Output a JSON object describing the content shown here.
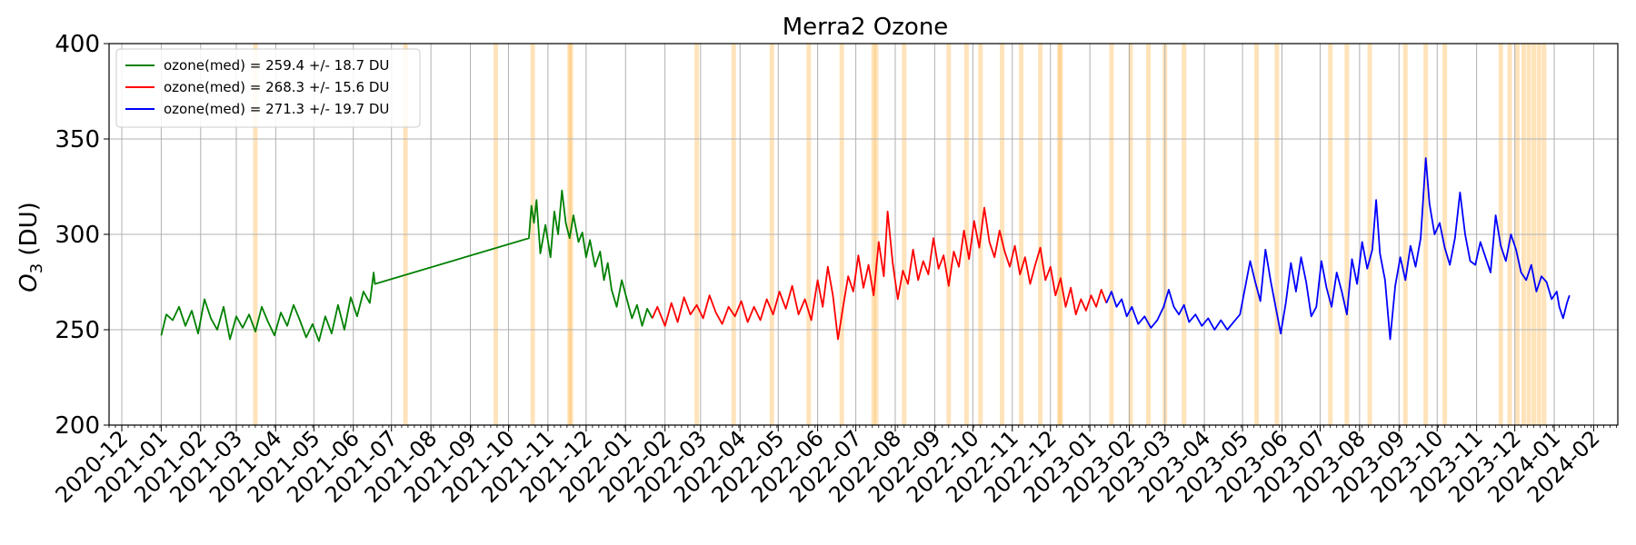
{
  "chart_data": {
    "type": "line",
    "title": "Merra2 Ozone",
    "ylabel_main": "O",
    "ylabel_sub": "3",
    "ylabel_rest": " (DU)",
    "xlabel": "",
    "xlim": [
      "2020-11-21",
      "2024-02-20"
    ],
    "ylim": [
      200,
      400
    ],
    "yticks": [
      200,
      250,
      300,
      350,
      400
    ],
    "xticks": [
      "2020-12",
      "2021-01",
      "2021-02",
      "2021-03",
      "2021-04",
      "2021-05",
      "2021-06",
      "2021-07",
      "2021-08",
      "2021-09",
      "2021-10",
      "2021-11",
      "2021-12",
      "2022-01",
      "2022-02",
      "2022-03",
      "2022-04",
      "2022-05",
      "2022-06",
      "2022-07",
      "2022-08",
      "2022-09",
      "2022-10",
      "2022-11",
      "2022-12",
      "2023-01",
      "2023-02",
      "2023-03",
      "2023-04",
      "2023-05",
      "2023-06",
      "2023-07",
      "2023-08",
      "2023-09",
      "2023-10",
      "2023-11",
      "2023-12",
      "2024-01",
      "2024-02"
    ],
    "grid": true,
    "legend_position": "top-left",
    "series": [
      {
        "name": "ozone(med) = 259.4 +/- 18.7 DU",
        "color": "#008000",
        "points": [
          [
            "2021-01-01",
            247
          ],
          [
            "2021-01-05",
            258
          ],
          [
            "2021-01-10",
            255
          ],
          [
            "2021-01-15",
            262
          ],
          [
            "2021-01-20",
            252
          ],
          [
            "2021-01-25",
            260
          ],
          [
            "2021-01-30",
            248
          ],
          [
            "2021-02-04",
            266
          ],
          [
            "2021-02-09",
            256
          ],
          [
            "2021-02-14",
            250
          ],
          [
            "2021-02-19",
            262
          ],
          [
            "2021-02-24",
            245
          ],
          [
            "2021-03-01",
            257
          ],
          [
            "2021-03-06",
            251
          ],
          [
            "2021-03-11",
            258
          ],
          [
            "2021-03-16",
            249
          ],
          [
            "2021-03-21",
            262
          ],
          [
            "2021-03-26",
            254
          ],
          [
            "2021-03-31",
            247
          ],
          [
            "2021-04-05",
            259
          ],
          [
            "2021-04-10",
            252
          ],
          [
            "2021-04-15",
            263
          ],
          [
            "2021-04-20",
            255
          ],
          [
            "2021-04-25",
            246
          ],
          [
            "2021-04-30",
            253
          ],
          [
            "2021-05-05",
            244
          ],
          [
            "2021-05-10",
            257
          ],
          [
            "2021-05-15",
            248
          ],
          [
            "2021-05-20",
            263
          ],
          [
            "2021-05-25",
            250
          ],
          [
            "2021-05-30",
            267
          ],
          [
            "2021-06-04",
            257
          ],
          [
            "2021-06-09",
            270
          ],
          [
            "2021-06-14",
            264
          ],
          [
            "2021-06-17",
            280
          ],
          [
            "2021-06-18",
            274
          ],
          [
            "2021-10-17",
            298
          ],
          [
            "2021-10-19",
            315
          ],
          [
            "2021-10-21",
            306
          ],
          [
            "2021-10-23",
            318
          ],
          [
            "2021-10-26",
            290
          ],
          [
            "2021-10-30",
            305
          ],
          [
            "2021-11-03",
            288
          ],
          [
            "2021-11-06",
            312
          ],
          [
            "2021-11-09",
            300
          ],
          [
            "2021-11-12",
            323
          ],
          [
            "2021-11-15",
            306
          ],
          [
            "2021-11-18",
            298
          ],
          [
            "2021-11-21",
            310
          ],
          [
            "2021-11-25",
            296
          ],
          [
            "2021-11-28",
            301
          ],
          [
            "2021-12-01",
            288
          ],
          [
            "2021-12-04",
            297
          ],
          [
            "2021-12-08",
            283
          ],
          [
            "2021-12-12",
            291
          ],
          [
            "2021-12-15",
            276
          ],
          [
            "2021-12-18",
            285
          ],
          [
            "2021-12-21",
            271
          ],
          [
            "2021-12-25",
            262
          ],
          [
            "2021-12-29",
            276
          ],
          [
            "2022-01-02",
            266
          ],
          [
            "2022-01-06",
            256
          ],
          [
            "2022-01-10",
            263
          ],
          [
            "2022-01-14",
            252
          ],
          [
            "2022-01-18",
            261
          ],
          [
            "2022-01-22",
            256
          ]
        ]
      },
      {
        "name": "ozone(med) = 268.3 +/- 15.6 DU",
        "color": "#ff0000",
        "points": [
          [
            "2022-01-22",
            256
          ],
          [
            "2022-01-26",
            262
          ],
          [
            "2022-02-01",
            252
          ],
          [
            "2022-02-06",
            264
          ],
          [
            "2022-02-11",
            254
          ],
          [
            "2022-02-16",
            267
          ],
          [
            "2022-02-21",
            258
          ],
          [
            "2022-02-26",
            263
          ],
          [
            "2022-03-03",
            256
          ],
          [
            "2022-03-08",
            268
          ],
          [
            "2022-03-13",
            259
          ],
          [
            "2022-03-18",
            253
          ],
          [
            "2022-03-23",
            262
          ],
          [
            "2022-03-28",
            257
          ],
          [
            "2022-04-02",
            265
          ],
          [
            "2022-04-07",
            254
          ],
          [
            "2022-04-12",
            262
          ],
          [
            "2022-04-17",
            255
          ],
          [
            "2022-04-22",
            266
          ],
          [
            "2022-04-27",
            258
          ],
          [
            "2022-05-02",
            270
          ],
          [
            "2022-05-07",
            261
          ],
          [
            "2022-05-12",
            273
          ],
          [
            "2022-05-17",
            258
          ],
          [
            "2022-05-22",
            266
          ],
          [
            "2022-05-27",
            255
          ],
          [
            "2022-06-01",
            276
          ],
          [
            "2022-06-05",
            262
          ],
          [
            "2022-06-09",
            283
          ],
          [
            "2022-06-13",
            268
          ],
          [
            "2022-06-17",
            245
          ],
          [
            "2022-06-21",
            262
          ],
          [
            "2022-06-25",
            278
          ],
          [
            "2022-06-29",
            270
          ],
          [
            "2022-07-03",
            289
          ],
          [
            "2022-07-07",
            272
          ],
          [
            "2022-07-11",
            284
          ],
          [
            "2022-07-15",
            268
          ],
          [
            "2022-07-19",
            296
          ],
          [
            "2022-07-23",
            278
          ],
          [
            "2022-07-26",
            312
          ],
          [
            "2022-07-30",
            285
          ],
          [
            "2022-08-03",
            266
          ],
          [
            "2022-08-07",
            281
          ],
          [
            "2022-08-11",
            274
          ],
          [
            "2022-08-15",
            292
          ],
          [
            "2022-08-19",
            276
          ],
          [
            "2022-08-23",
            286
          ],
          [
            "2022-08-27",
            279
          ],
          [
            "2022-08-31",
            298
          ],
          [
            "2022-09-04",
            282
          ],
          [
            "2022-09-08",
            289
          ],
          [
            "2022-09-12",
            273
          ],
          [
            "2022-09-16",
            291
          ],
          [
            "2022-09-20",
            283
          ],
          [
            "2022-09-24",
            302
          ],
          [
            "2022-09-28",
            287
          ],
          [
            "2022-10-02",
            307
          ],
          [
            "2022-10-06",
            293
          ],
          [
            "2022-10-10",
            314
          ],
          [
            "2022-10-14",
            296
          ],
          [
            "2022-10-18",
            288
          ],
          [
            "2022-10-22",
            302
          ],
          [
            "2022-10-26",
            291
          ],
          [
            "2022-10-30",
            283
          ],
          [
            "2022-11-03",
            294
          ],
          [
            "2022-11-07",
            279
          ],
          [
            "2022-11-11",
            288
          ],
          [
            "2022-11-15",
            274
          ],
          [
            "2022-11-19",
            284
          ],
          [
            "2022-11-23",
            293
          ],
          [
            "2022-11-27",
            276
          ],
          [
            "2022-12-01",
            283
          ],
          [
            "2022-12-05",
            268
          ],
          [
            "2022-12-09",
            277
          ],
          [
            "2022-12-13",
            262
          ],
          [
            "2022-12-17",
            272
          ],
          [
            "2022-12-21",
            258
          ],
          [
            "2022-12-25",
            266
          ],
          [
            "2022-12-29",
            260
          ],
          [
            "2023-01-02",
            268
          ],
          [
            "2023-01-06",
            262
          ],
          [
            "2023-01-10",
            271
          ],
          [
            "2023-01-14",
            264
          ]
        ]
      },
      {
        "name": "ozone(med) = 271.3 +/- 19.7 DU",
        "color": "#0000ff",
        "points": [
          [
            "2023-01-14",
            264
          ],
          [
            "2023-01-18",
            270
          ],
          [
            "2023-01-22",
            262
          ],
          [
            "2023-01-26",
            266
          ],
          [
            "2023-01-30",
            257
          ],
          [
            "2023-02-03",
            262
          ],
          [
            "2023-02-08",
            253
          ],
          [
            "2023-02-13",
            257
          ],
          [
            "2023-02-18",
            251
          ],
          [
            "2023-02-23",
            255
          ],
          [
            "2023-02-28",
            262
          ],
          [
            "2023-03-04",
            271
          ],
          [
            "2023-03-08",
            262
          ],
          [
            "2023-03-12",
            258
          ],
          [
            "2023-03-16",
            263
          ],
          [
            "2023-03-20",
            254
          ],
          [
            "2023-03-25",
            258
          ],
          [
            "2023-03-30",
            252
          ],
          [
            "2023-04-04",
            256
          ],
          [
            "2023-04-09",
            250
          ],
          [
            "2023-04-14",
            255
          ],
          [
            "2023-04-19",
            250
          ],
          [
            "2023-04-24",
            254
          ],
          [
            "2023-04-29",
            258
          ],
          [
            "2023-05-03",
            272
          ],
          [
            "2023-05-07",
            286
          ],
          [
            "2023-05-11",
            275
          ],
          [
            "2023-05-15",
            265
          ],
          [
            "2023-05-19",
            292
          ],
          [
            "2023-05-23",
            276
          ],
          [
            "2023-05-27",
            262
          ],
          [
            "2023-05-31",
            248
          ],
          [
            "2023-06-04",
            264
          ],
          [
            "2023-06-08",
            285
          ],
          [
            "2023-06-12",
            270
          ],
          [
            "2023-06-16",
            288
          ],
          [
            "2023-06-20",
            275
          ],
          [
            "2023-06-24",
            257
          ],
          [
            "2023-06-28",
            262
          ],
          [
            "2023-07-02",
            286
          ],
          [
            "2023-07-06",
            272
          ],
          [
            "2023-07-10",
            262
          ],
          [
            "2023-07-14",
            280
          ],
          [
            "2023-07-18",
            270
          ],
          [
            "2023-07-22",
            258
          ],
          [
            "2023-07-26",
            287
          ],
          [
            "2023-07-30",
            274
          ],
          [
            "2023-08-03",
            296
          ],
          [
            "2023-08-07",
            282
          ],
          [
            "2023-08-11",
            292
          ],
          [
            "2023-08-14",
            318
          ],
          [
            "2023-08-17",
            290
          ],
          [
            "2023-08-21",
            276
          ],
          [
            "2023-08-25",
            245
          ],
          [
            "2023-08-29",
            273
          ],
          [
            "2023-09-02",
            288
          ],
          [
            "2023-09-06",
            276
          ],
          [
            "2023-09-10",
            294
          ],
          [
            "2023-09-14",
            283
          ],
          [
            "2023-09-18",
            298
          ],
          [
            "2023-09-22",
            340
          ],
          [
            "2023-09-25",
            316
          ],
          [
            "2023-09-29",
            300
          ],
          [
            "2023-10-03",
            306
          ],
          [
            "2023-10-07",
            293
          ],
          [
            "2023-10-11",
            284
          ],
          [
            "2023-10-15",
            298
          ],
          [
            "2023-10-19",
            322
          ],
          [
            "2023-10-23",
            300
          ],
          [
            "2023-10-27",
            286
          ],
          [
            "2023-10-31",
            284
          ],
          [
            "2023-11-04",
            296
          ],
          [
            "2023-11-08",
            288
          ],
          [
            "2023-11-12",
            280
          ],
          [
            "2023-11-16",
            310
          ],
          [
            "2023-11-20",
            294
          ],
          [
            "2023-11-24",
            286
          ],
          [
            "2023-11-28",
            300
          ],
          [
            "2023-12-02",
            292
          ],
          [
            "2023-12-06",
            280
          ],
          [
            "2023-12-10",
            276
          ],
          [
            "2023-12-14",
            284
          ],
          [
            "2023-12-18",
            270
          ],
          [
            "2023-12-22",
            278
          ],
          [
            "2023-12-26",
            275
          ],
          [
            "2023-12-30",
            266
          ],
          [
            "2024-01-03",
            270
          ],
          [
            "2024-01-05",
            262
          ],
          [
            "2024-01-08",
            256
          ],
          [
            "2024-01-11",
            264
          ],
          [
            "2024-01-13",
            268
          ]
        ]
      }
    ],
    "highlight_bands": [
      "2021-03-16",
      "2021-07-12",
      "2021-09-21",
      "2021-10-20",
      "2021-11-18",
      "2021-11-19",
      "2022-02-26",
      "2022-03-27",
      "2022-04-26",
      "2022-05-25",
      "2022-06-20",
      "2022-07-15",
      "2022-07-17",
      "2022-08-08",
      "2022-09-12",
      "2022-09-26",
      "2022-10-07",
      "2022-10-24",
      "2022-11-08",
      "2022-11-23",
      "2022-12-08",
      "2022-12-09",
      "2023-01-18",
      "2023-02-02",
      "2023-02-16",
      "2023-03-01",
      "2023-03-16",
      "2023-05-12",
      "2023-05-28",
      "2023-07-09",
      "2023-07-22",
      "2023-08-09",
      "2023-09-06",
      "2023-09-22",
      "2023-10-07",
      "2023-11-20",
      "2023-11-27",
      "2023-12-03",
      "2023-12-08",
      "2023-12-12",
      "2023-12-16",
      "2023-12-20",
      "2023-12-24"
    ],
    "highlight_color": "#ffc266",
    "line_color_default": "#000000",
    "grid_color": "#b0b0b0"
  }
}
